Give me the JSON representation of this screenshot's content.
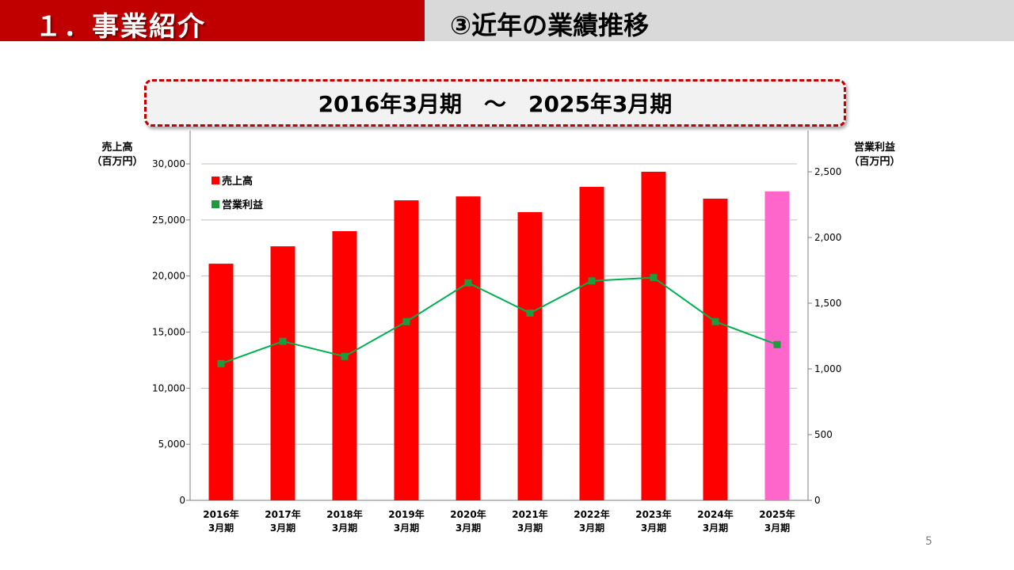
{
  "header": {
    "section_title": "１．事業紹介",
    "subtitle": "③近年の業績推移"
  },
  "period": "2016年3月期　～　2025年3月期",
  "page_number": "5",
  "colors": {
    "header_red": "#c00000",
    "header_gray": "#d9d9d9",
    "bar_red": "#ff0000",
    "bar_highlight": "#ff66cc",
    "line_green": "#00b050"
  },
  "chart_data": {
    "type": "bar+line",
    "categories": [
      [
        "2016年",
        "3月期"
      ],
      [
        "2017年",
        "3月期"
      ],
      [
        "2018年",
        "3月期"
      ],
      [
        "2019年",
        "3月期"
      ],
      [
        "2020年",
        "3月期"
      ],
      [
        "2021年",
        "3月期"
      ],
      [
        "2022年",
        "3月期"
      ],
      [
        "2023年",
        "3月期"
      ],
      [
        "2024年",
        "3月期"
      ],
      [
        "2025年",
        "3月期"
      ]
    ],
    "series": [
      {
        "name": "売上高",
        "type": "bar",
        "axis": "left",
        "values": [
          21100,
          22650,
          24000,
          26750,
          27100,
          25700,
          27950,
          29300,
          26900,
          27550
        ],
        "highlight_index": 9
      },
      {
        "name": "営業利益",
        "type": "line",
        "axis": "right",
        "values": [
          1040,
          1210,
          1095,
          1360,
          1655,
          1425,
          1670,
          1695,
          1360,
          1185
        ]
      }
    ],
    "left_axis": {
      "title": [
        "売上高",
        "（百万円）"
      ],
      "range": [
        0,
        30000
      ],
      "ticks": [
        0,
        5000,
        10000,
        15000,
        20000,
        25000,
        30000
      ],
      "tick_labels": [
        "0",
        "5,000",
        "10,000",
        "15,000",
        "20,000",
        "25,000",
        "30,000"
      ]
    },
    "right_axis": {
      "title": [
        "営業利益",
        "（百万円）"
      ],
      "range": [
        0,
        2500
      ],
      "ticks": [
        0,
        500,
        1000,
        1500,
        2000,
        2500
      ],
      "tick_labels": [
        "0",
        "500",
        "1,000",
        "1,500",
        "2,000",
        "2,500"
      ]
    },
    "legend": [
      "売上高",
      "営業利益"
    ],
    "legend_position": "top-left",
    "grid": true
  }
}
